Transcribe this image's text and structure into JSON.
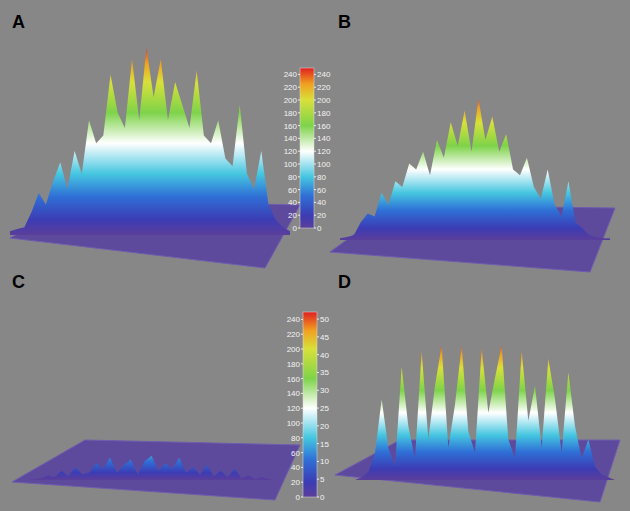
{
  "chart_data": [
    {
      "type": "area",
      "label": "A",
      "tick_labels": false,
      "xlim": [
        0,
        39
      ],
      "ylim": [
        0,
        255
      ],
      "color_range": [
        0,
        250
      ],
      "x": [
        0,
        1,
        2,
        3,
        4,
        5,
        6,
        7,
        8,
        9,
        10,
        11,
        12,
        13,
        14,
        15,
        16,
        17,
        18,
        19,
        20,
        21,
        22,
        23,
        24,
        25,
        26,
        27,
        28,
        29,
        30,
        31,
        32,
        33,
        34,
        35,
        36,
        37,
        38,
        39
      ],
      "values": [
        5,
        8,
        10,
        30,
        55,
        40,
        70,
        95,
        60,
        110,
        80,
        150,
        120,
        130,
        210,
        160,
        140,
        230,
        150,
        245,
        180,
        230,
        150,
        200,
        170,
        140,
        215,
        130,
        120,
        150,
        100,
        90,
        170,
        80,
        60,
        110,
        40,
        20,
        10,
        5
      ]
    },
    {
      "type": "area",
      "label": "B",
      "tick_labels": false,
      "xlim": [
        0,
        39
      ],
      "ylim": [
        0,
        255
      ],
      "color_range": [
        0,
        250
      ],
      "x": [
        0,
        1,
        2,
        3,
        4,
        5,
        6,
        7,
        8,
        9,
        10,
        11,
        12,
        13,
        14,
        15,
        16,
        17,
        18,
        19,
        20,
        21,
        22,
        23,
        24,
        25,
        26,
        27,
        28,
        29,
        30,
        31,
        32,
        33,
        34,
        35,
        36,
        37,
        38,
        39
      ],
      "values": [
        3,
        5,
        8,
        30,
        45,
        40,
        80,
        60,
        100,
        90,
        130,
        120,
        150,
        110,
        170,
        140,
        200,
        160,
        220,
        150,
        240,
        170,
        210,
        150,
        180,
        120,
        110,
        140,
        90,
        70,
        120,
        60,
        40,
        100,
        30,
        20,
        8,
        5,
        3,
        3
      ]
    },
    {
      "type": "area",
      "label": "C",
      "tick_labels": false,
      "xlim": [
        0,
        39
      ],
      "ylim": [
        0,
        255
      ],
      "color_range": [
        0,
        250
      ],
      "x": [
        0,
        1,
        2,
        3,
        4,
        5,
        6,
        7,
        8,
        9,
        10,
        11,
        12,
        13,
        14,
        15,
        16,
        17,
        18,
        19,
        20,
        21,
        22,
        23,
        24,
        25,
        26,
        27,
        28,
        29,
        30,
        31,
        32,
        33,
        34,
        35,
        36,
        37,
        38,
        39
      ],
      "values": [
        0,
        0,
        2,
        5,
        12,
        8,
        25,
        10,
        35,
        15,
        20,
        45,
        30,
        60,
        20,
        40,
        55,
        15,
        50,
        65,
        25,
        45,
        30,
        60,
        20,
        35,
        15,
        40,
        10,
        25,
        8,
        30,
        5,
        12,
        3,
        8,
        2,
        0,
        0,
        0
      ]
    },
    {
      "type": "area",
      "label": "D",
      "tick_labels": false,
      "xlim": [
        0,
        39
      ],
      "ylim": [
        0,
        52
      ],
      "color_range": [
        0,
        52
      ],
      "x": [
        0,
        1,
        2,
        3,
        4,
        5,
        6,
        7,
        8,
        9,
        10,
        11,
        12,
        13,
        14,
        15,
        16,
        17,
        18,
        19,
        20,
        21,
        22,
        23,
        24,
        25,
        26,
        27,
        28,
        29,
        30,
        31,
        32,
        33,
        34,
        35,
        36,
        37,
        38,
        39
      ],
      "values": [
        0,
        1,
        3,
        10,
        30,
        12,
        5,
        42,
        20,
        8,
        48,
        15,
        35,
        50,
        12,
        28,
        50,
        18,
        10,
        49,
        25,
        38,
        50,
        15,
        8,
        48,
        22,
        35,
        12,
        45,
        30,
        10,
        40,
        20,
        8,
        15,
        5,
        2,
        1,
        0
      ]
    }
  ],
  "colorbars": [
    {
      "range_left": [
        0,
        250
      ],
      "ticks_left": [
        0,
        20,
        40,
        60,
        80,
        100,
        120,
        140,
        160,
        180,
        200,
        220,
        240
      ],
      "range_right": [
        0,
        250
      ],
      "ticks_right": [
        0,
        20,
        40,
        60,
        80,
        100,
        120,
        140,
        160,
        180,
        200,
        220,
        240
      ]
    },
    {
      "range_left": [
        0,
        250
      ],
      "ticks_left": [
        0,
        20,
        40,
        60,
        80,
        100,
        120,
        140,
        160,
        180,
        200,
        220,
        240
      ],
      "range_right": [
        0,
        52
      ],
      "ticks_right": [
        0,
        5,
        10,
        15,
        20,
        25,
        30,
        35,
        40,
        45,
        50
      ]
    }
  ]
}
